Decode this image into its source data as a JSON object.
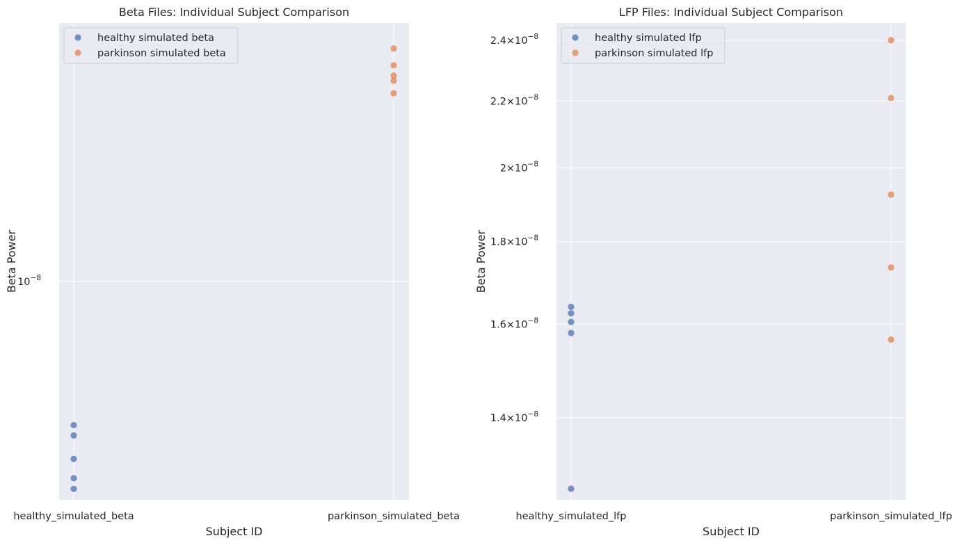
{
  "figure_background": "#ffffff",
  "axes_background": "#eaeaf2",
  "grid_color": "#ffffff",
  "text_color": "#262626",
  "series_colors": [
    "#4c72b0",
    "#dd8452"
  ],
  "chart_data": [
    {
      "type": "scatter",
      "title": "Beta Files: Individual Subject Comparison",
      "xlabel": "Subject ID",
      "ylabel": "Beta Power",
      "yscale": "log",
      "grid": true,
      "legend_position": "upper-left",
      "categories": [
        "healthy_simulated_beta",
        "parkinson_simulated_beta"
      ],
      "ylim": [
        6.55e-09,
        1.65e-08
      ],
      "yticks": [
        1e-08
      ],
      "ytick_labels": [
        "10^-8"
      ],
      "series": [
        {
          "name": "healthy simulated beta",
          "category": "healthy_simulated_beta",
          "values": [
            7.57e-09,
            7.42e-09,
            7.09e-09,
            6.83e-09,
            6.69e-09
          ]
        },
        {
          "name": "parkinson simulated beta",
          "category": "parkinson_simulated_beta",
          "values": [
            1.57e-08,
            1.52e-08,
            1.49e-08,
            1.475e-08,
            1.44e-08
          ]
        }
      ]
    },
    {
      "type": "scatter",
      "title": "LFP Files: Individual Subject Comparison",
      "xlabel": "Subject ID",
      "ylabel": "Beta Power",
      "yscale": "log",
      "grid": true,
      "legend_position": "upper-left",
      "categories": [
        "healthy_simulated_lfp",
        "parkinson_simulated_lfp"
      ],
      "ylim": [
        1.245e-08,
        2.46e-08
      ],
      "yticks": [
        1.4e-08,
        1.6e-08,
        1.8e-08,
        2e-08,
        2.2e-08,
        2.4e-08
      ],
      "ytick_labels": [
        "1.4×10^-8",
        "1.6×10^-8",
        "1.8×10^-8",
        "2×10^-8",
        "2.2×10^-8",
        "2.4×10^-8"
      ],
      "series": [
        {
          "name": "healthy simulated lfp",
          "category": "healthy_simulated_lfp",
          "values": [
            1.64e-08,
            1.625e-08,
            1.605e-08,
            1.58e-08,
            1.265e-08
          ]
        },
        {
          "name": "parkinson simulated lfp",
          "category": "parkinson_simulated_lfp",
          "values": [
            2.4e-08,
            2.21e-08,
            1.925e-08,
            1.735e-08,
            1.565e-08
          ]
        }
      ]
    }
  ]
}
